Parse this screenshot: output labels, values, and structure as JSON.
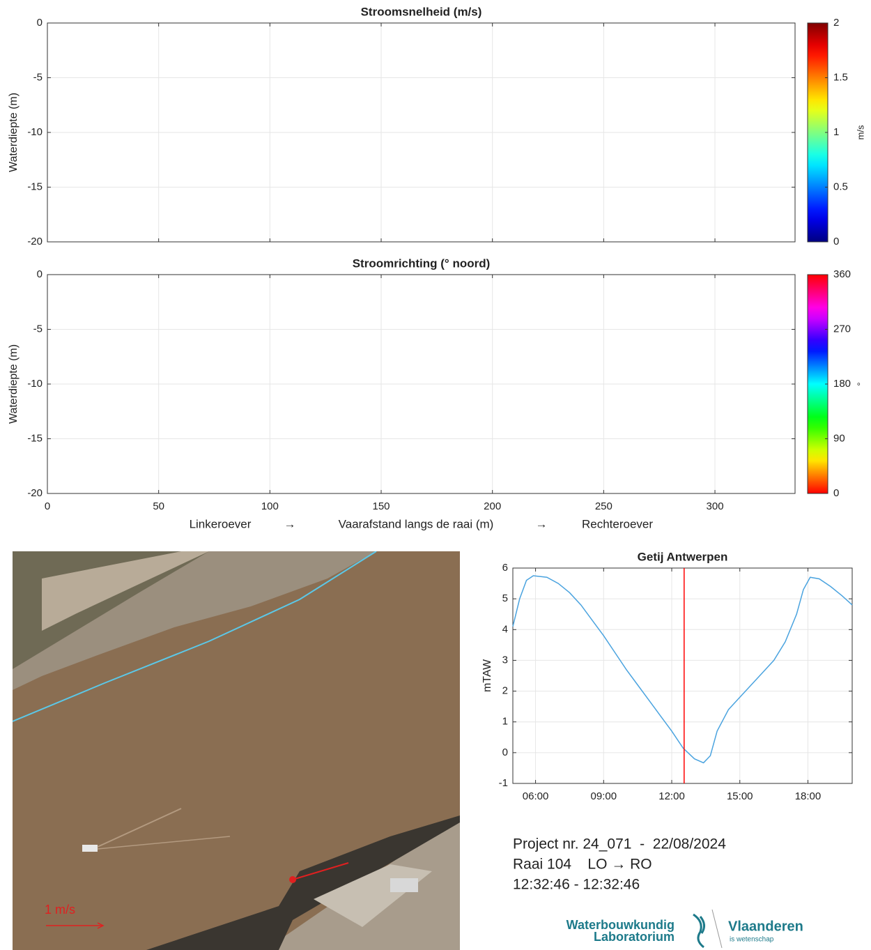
{
  "chart_data": [
    {
      "type": "heatmap",
      "title": "Stroomsnelheid (m/s)",
      "ylabel": "Waterdiepte (m)",
      "xlim": [
        0,
        336
      ],
      "xticks": [
        0,
        50,
        100,
        150,
        200,
        250,
        300
      ],
      "ylim": [
        -20,
        0
      ],
      "yticks": [
        0,
        -5,
        -10,
        -15,
        -20
      ],
      "grid": true,
      "colormap": "jet",
      "clim": [
        0,
        2
      ],
      "cticks": [
        0,
        0.5,
        1,
        1.5,
        2
      ],
      "clabel": "m/s"
    },
    {
      "type": "heatmap",
      "title": "Stroomrichting (° noord)",
      "ylabel": "Waterdiepte (m)",
      "xlabel": [
        "Linkeroever",
        "→",
        "Vaarafstand langs de raai (m)",
        "→",
        "Rechteroever"
      ],
      "xlim": [
        0,
        336
      ],
      "xticks": [
        0,
        50,
        100,
        150,
        200,
        250,
        300
      ],
      "ylim": [
        -20,
        0
      ],
      "yticks": [
        0,
        -5,
        -10,
        -15,
        -20
      ],
      "grid": true,
      "colormap": "hsv",
      "clim": [
        0,
        360
      ],
      "cticks": [
        0,
        90,
        180,
        270,
        360
      ],
      "clabel": "°"
    },
    {
      "type": "line",
      "title": "Getij Antwerpen",
      "ylabel": "mTAW",
      "color": "#4aa3df",
      "grid": true,
      "x": [
        5.0,
        5.3,
        5.6,
        5.9,
        6.5,
        7.0,
        7.5,
        8.0,
        8.5,
        9.0,
        9.5,
        10.0,
        10.5,
        11.0,
        11.5,
        12.0,
        12.5,
        13.0,
        13.4,
        13.7,
        14.0,
        14.5,
        15.0,
        15.5,
        16.0,
        16.5,
        17.0,
        17.5,
        17.8,
        18.1,
        18.5,
        19.0,
        19.5,
        19.95
      ],
      "values": [
        4.1,
        5.0,
        5.6,
        5.75,
        5.7,
        5.5,
        5.2,
        4.8,
        4.3,
        3.8,
        3.25,
        2.7,
        2.2,
        1.7,
        1.2,
        0.7,
        0.15,
        -0.2,
        -0.33,
        -0.1,
        0.7,
        1.4,
        1.8,
        2.2,
        2.6,
        3.0,
        3.6,
        4.5,
        5.3,
        5.7,
        5.65,
        5.4,
        5.1,
        4.8
      ],
      "xlim": [
        5.0,
        19.95
      ],
      "xticks": [
        {
          "value": 6,
          "label": "06:00"
        },
        {
          "value": 9,
          "label": "09:00"
        },
        {
          "value": 12,
          "label": "12:00"
        },
        {
          "value": 15,
          "label": "15:00"
        },
        {
          "value": 18,
          "label": "18:00"
        }
      ],
      "ylim": [
        -1,
        6
      ],
      "yticks": [
        -1,
        0,
        1,
        2,
        3,
        4,
        5,
        6
      ],
      "marker_x": 12.546,
      "marker_color": "#ff0000"
    }
  ],
  "photo": {
    "scale_label": "1 m/s"
  },
  "info": [
    "Project nr. 24_071  -  22/08/2024",
    "Raai 104    LO → RO",
    "12:32:46 - 12:32:46"
  ],
  "logos": {
    "wl": [
      "Waterbouwkundig",
      "Laboratorium"
    ],
    "vl": [
      "Vlaanderen",
      "is wetenschap"
    ]
  }
}
